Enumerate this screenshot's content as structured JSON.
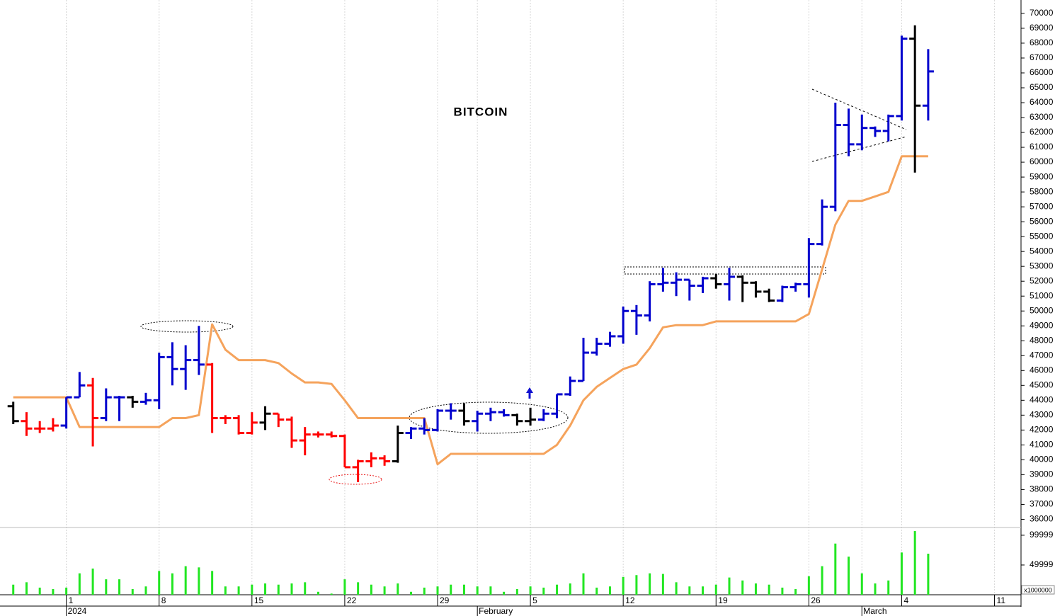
{
  "chart_data": {
    "type": "ohlc",
    "title": "BITCOIN",
    "x": [
      "2023-12-28",
      "2023-12-29",
      "2023-12-30",
      "2023-12-31",
      "2024-01-01",
      "2024-01-02",
      "2024-01-03",
      "2024-01-04",
      "2024-01-05",
      "2024-01-06",
      "2024-01-07",
      "2024-01-08",
      "2024-01-09",
      "2024-01-10",
      "2024-01-11",
      "2024-01-12",
      "2024-01-13",
      "2024-01-14",
      "2024-01-15",
      "2024-01-16",
      "2024-01-17",
      "2024-01-18",
      "2024-01-19",
      "2024-01-20",
      "2024-01-21",
      "2024-01-22",
      "2024-01-23",
      "2024-01-24",
      "2024-01-25",
      "2024-01-26",
      "2024-01-27",
      "2024-01-28",
      "2024-01-29",
      "2024-01-30",
      "2024-01-31",
      "2024-02-01",
      "2024-02-02",
      "2024-02-03",
      "2024-02-04",
      "2024-02-05",
      "2024-02-06",
      "2024-02-07",
      "2024-02-08",
      "2024-02-09",
      "2024-02-10",
      "2024-02-11",
      "2024-02-12",
      "2024-02-13",
      "2024-02-14",
      "2024-02-15",
      "2024-02-16",
      "2024-02-17",
      "2024-02-18",
      "2024-02-19",
      "2024-02-20",
      "2024-02-21",
      "2024-02-22",
      "2024-02-23",
      "2024-02-24",
      "2024-02-25",
      "2024-02-26",
      "2024-02-27",
      "2024-02-28",
      "2024-02-29",
      "2024-03-01",
      "2024-03-02",
      "2024-03-03",
      "2024-03-04",
      "2024-03-05",
      "2024-03-06"
    ],
    "open": [
      43600,
      42600,
      42100,
      42100,
      42300,
      44200,
      45000,
      42800,
      44200,
      44200,
      43900,
      44000,
      46900,
      46100,
      46700,
      46400,
      42800,
      42800,
      41800,
      42500,
      43100,
      42700,
      41300,
      41700,
      41700,
      41600,
      39500,
      39900,
      40100,
      39900,
      41800,
      42100,
      42000,
      43300,
      43300,
      42600,
      43100,
      43200,
      43000,
      42600,
      42700,
      43100,
      44400,
      45300,
      47200,
      47800,
      48300,
      50000,
      49700,
      51800,
      51900,
      52100,
      51700,
      52200,
      51800,
      52300,
      51900,
      51300,
      50700,
      51600,
      51800,
      54500,
      57000,
      62500,
      61200,
      62300,
      62100,
      63100,
      68300,
      63800
    ],
    "high": [
      43900,
      43200,
      42600,
      42800,
      44200,
      45900,
      45500,
      44800,
      44300,
      44300,
      44500,
      47200,
      47900,
      47700,
      49000,
      46500,
      43000,
      43000,
      43200,
      43600,
      43100,
      42900,
      42200,
      41900,
      41900,
      41700,
      40000,
      40500,
      40300,
      42300,
      42200,
      42800,
      43400,
      43800,
      43800,
      43300,
      43500,
      43400,
      43100,
      43500,
      43400,
      44400,
      45600,
      48200,
      48200,
      48600,
      50300,
      50400,
      52000,
      52900,
      52600,
      52100,
      52300,
      52500,
      52900,
      52400,
      52000,
      51500,
      51700,
      51900,
      54900,
      57500,
      64000,
      63600,
      63200,
      62400,
      63200,
      68500,
      69200,
      67600
    ],
    "low": [
      42400,
      41600,
      41800,
      41900,
      42100,
      44200,
      40900,
      42600,
      42600,
      43500,
      43700,
      43400,
      45000,
      44700,
      45700,
      41800,
      42400,
      41700,
      41700,
      42000,
      42200,
      40800,
      40300,
      41500,
      41500,
      39500,
      38500,
      39500,
      39600,
      39800,
      41400,
      41700,
      41900,
      42700,
      42300,
      41900,
      42600,
      42900,
      42300,
      42300,
      42600,
      42800,
      44300,
      45300,
      47000,
      47600,
      47800,
      48400,
      49300,
      51300,
      51000,
      50700,
      51200,
      51500,
      50700,
      50600,
      50900,
      50600,
      50600,
      51300,
      50900,
      54400,
      56700,
      60400,
      60800,
      61700,
      61400,
      62800,
      59300,
      62800
    ],
    "close": [
      42600,
      42100,
      42100,
      42300,
      44200,
      45000,
      42800,
      44200,
      44200,
      43900,
      44000,
      46900,
      46100,
      46700,
      46400,
      42800,
      42800,
      41800,
      42500,
      43100,
      42700,
      41300,
      41700,
      41700,
      41600,
      39500,
      39900,
      40100,
      39900,
      41800,
      42100,
      42000,
      43300,
      43300,
      42600,
      43100,
      43200,
      43000,
      42600,
      42700,
      43100,
      44400,
      45300,
      47200,
      47800,
      48300,
      50000,
      49700,
      51800,
      51900,
      52100,
      51700,
      52200,
      51800,
      52300,
      51900,
      51300,
      50700,
      51600,
      51800,
      54500,
      57000,
      62500,
      61200,
      62300,
      62100,
      63100,
      68300,
      63800,
      66100
    ],
    "bar_colors": [
      "black",
      "red",
      "red",
      "red",
      "mediumblue",
      "mediumblue",
      "red",
      "mediumblue",
      "mediumblue",
      "black",
      "mediumblue",
      "mediumblue",
      "mediumblue",
      "mediumblue",
      "mediumblue",
      "red",
      "red",
      "red",
      "red",
      "black",
      "red",
      "red",
      "red",
      "red",
      "red",
      "red",
      "red",
      "red",
      "red",
      "black",
      "mediumblue",
      "mediumblue",
      "mediumblue",
      "mediumblue",
      "black",
      "mediumblue",
      "mediumblue",
      "mediumblue",
      "black",
      "black",
      "mediumblue",
      "mediumblue",
      "mediumblue",
      "mediumblue",
      "mediumblue",
      "mediumblue",
      "mediumblue",
      "mediumblue",
      "mediumblue",
      "mediumblue",
      "mediumblue",
      "mediumblue",
      "mediumblue",
      "black",
      "mediumblue",
      "black",
      "black",
      "black",
      "mediumblue",
      "mediumblue",
      "mediumblue",
      "mediumblue",
      "mediumblue",
      "mediumblue",
      "mediumblue",
      "mediumblue",
      "mediumblue",
      "mediumblue",
      "black",
      "mediumblue"
    ],
    "line": {
      "color": "#f5a35c",
      "values": [
        44200,
        44200,
        44200,
        44200,
        44200,
        42200,
        42200,
        42200,
        42200,
        42200,
        42200,
        42200,
        42800,
        42800,
        43000,
        49100,
        47400,
        46700,
        46700,
        46700,
        46500,
        45800,
        45200,
        45200,
        45100,
        44000,
        42800,
        42800,
        42800,
        42800,
        42800,
        42800,
        39700,
        40400,
        40400,
        40400,
        40400,
        40400,
        40400,
        40400,
        40400,
        41000,
        42300,
        44000,
        44900,
        45500,
        46100,
        46400,
        47500,
        48900,
        49050,
        49050,
        49050,
        49300,
        49300,
        49300,
        49300,
        49300,
        49300,
        49300,
        49800,
        52800,
        55800,
        57400,
        57400,
        57700,
        58000,
        60400,
        60400,
        60400
      ]
    },
    "xlim": [
      "2023-12-27",
      "2024-03-13"
    ],
    "ylim": [
      35450,
      70900
    ],
    "yticks": [
      36000,
      37000,
      38000,
      39000,
      40000,
      41000,
      42000,
      43000,
      44000,
      45000,
      46000,
      47000,
      48000,
      49000,
      50000,
      51000,
      52000,
      53000,
      54000,
      55000,
      56000,
      57000,
      58000,
      59000,
      60000,
      61000,
      62000,
      63000,
      64000,
      65000,
      66000,
      67000,
      68000,
      69000,
      70000
    ],
    "xticks": [
      {
        "value": "2024-01-01",
        "label": "1"
      },
      {
        "value": "2024-01-08",
        "label": "8"
      },
      {
        "value": "2024-01-15",
        "label": "15"
      },
      {
        "value": "2024-01-22",
        "label": "22"
      },
      {
        "value": "2024-01-29",
        "label": "29"
      },
      {
        "value": "2024-02-05",
        "label": "5"
      },
      {
        "value": "2024-02-12",
        "label": "12"
      },
      {
        "value": "2024-02-19",
        "label": "19"
      },
      {
        "value": "2024-02-26",
        "label": "26"
      },
      {
        "value": "2024-03-04",
        "label": "4"
      },
      {
        "value": "2024-03-11",
        "label": "11"
      }
    ],
    "period_labels": [
      {
        "value": "2024-01-01",
        "label": "2024"
      },
      {
        "value": "2024-02-01",
        "label": "February"
      },
      {
        "value": "2024-03-01",
        "label": "March"
      }
    ],
    "grid": true,
    "volume": {
      "color": "#22e622",
      "values": [
        17000,
        21000,
        12000,
        9500,
        12000,
        36000,
        44000,
        26000,
        26000,
        9500,
        14000,
        40000,
        36000,
        48000,
        46000,
        40000,
        14000,
        14000,
        17000,
        19000,
        17000,
        19000,
        21000,
        5000,
        2000,
        26000,
        21000,
        17000,
        14000,
        19000,
        5000,
        12000,
        14000,
        17000,
        17000,
        14000,
        14000,
        5000,
        9500,
        14000,
        12000,
        17000,
        19000,
        36000,
        12000,
        14000,
        30000,
        33000,
        36000,
        35000,
        21000,
        14000,
        14000,
        17000,
        29000,
        24000,
        19000,
        17000,
        12000,
        9500,
        31000,
        48000,
        86000,
        64000,
        36000,
        19000,
        24000,
        71000,
        107000,
        69000
      ],
      "ylim": [
        0,
        113000
      ],
      "yticks": [
        49999,
        99999
      ],
      "unit_label": "x1000000"
    }
  }
}
